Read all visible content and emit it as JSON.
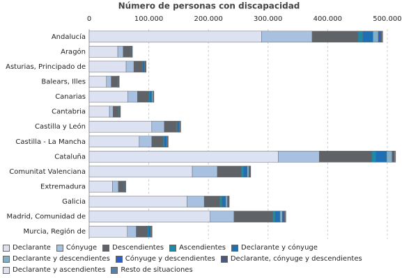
{
  "chart_data": {
    "type": "stacked-barh",
    "title": "Número de personas con discapacidad",
    "categories": [
      "Andalucía",
      "Aragón",
      "Asturias, Principado de",
      "Balears, Illes",
      "Canarias",
      "Cantabria",
      "Castilla y León",
      "Castilla - La Mancha",
      "Cataluña",
      "Comunitat Valenciana",
      "Extremadura",
      "Galicia",
      "Madrid, Comunidad de",
      "Murcia, Región de"
    ],
    "series": [
      {
        "name": "Declarante",
        "color": "#dde2f2",
        "values": [
          289000,
          48000,
          62000,
          29000,
          65000,
          34000,
          105000,
          84000,
          317000,
          173000,
          39000,
          164000,
          203000,
          64000
        ]
      },
      {
        "name": "Cónyuge",
        "color": "#a9c1e0",
        "values": [
          85000,
          9000,
          13000,
          8000,
          16000,
          6000,
          21000,
          21000,
          69000,
          42000,
          10000,
          29000,
          40000,
          15000
        ]
      },
      {
        "name": "Descendientes",
        "color": "#5f6368",
        "values": [
          77000,
          12000,
          14000,
          10000,
          19000,
          9000,
          20000,
          19000,
          88000,
          40000,
          9000,
          26000,
          65000,
          19000
        ]
      },
      {
        "name": "Ascendientes",
        "color": "#1f8aa8",
        "values": [
          8000,
          1000,
          1000,
          1000,
          2000,
          1000,
          2000,
          2000,
          7000,
          4000,
          1000,
          4000,
          4000,
          2000
        ]
      },
      {
        "name": "Declarante y cónyuge",
        "color": "#1f6fb5",
        "values": [
          17000,
          1000,
          3000,
          1000,
          3000,
          1000,
          3000,
          4000,
          18000,
          6000,
          1000,
          6000,
          8000,
          3000
        ]
      },
      {
        "name": "Declarante y descendientes",
        "color": "#7fb0c8",
        "values": [
          9000,
          500,
          1000,
          500,
          2000,
          500,
          1000,
          1000,
          9000,
          3000,
          500,
          3000,
          4000,
          1000
        ]
      },
      {
        "name": "Cónyuge y descendientes",
        "color": "#2f5fc0",
        "values": [
          3500,
          300,
          500,
          300,
          500,
          300,
          500,
          500,
          2000,
          1000,
          300,
          1000,
          2000,
          500
        ]
      },
      {
        "name": "Declarante, cónyuge y descendientes",
        "color": "#4a5a7a",
        "values": [
          2000,
          300,
          500,
          300,
          500,
          300,
          500,
          500,
          2000,
          1000,
          300,
          1000,
          2000,
          500
        ]
      },
      {
        "name": "Declarante y ascendientes",
        "color": "#dde2f2",
        "values": [
          1000,
          200,
          300,
          200,
          300,
          200,
          300,
          300,
          1000,
          500,
          200,
          500,
          1000,
          300
        ]
      },
      {
        "name": "Resto de situaciones",
        "color": "#5a7fa0",
        "values": [
          1000,
          200,
          300,
          200,
          300,
          200,
          300,
          300,
          1000,
          500,
          200,
          500,
          1000,
          300
        ]
      }
    ],
    "xlim": [
      0,
      520000
    ],
    "xticks": [
      0,
      {
        "value": 100000,
        "label": "100.000"
      },
      {
        "value": 200000,
        "label": "200.000"
      },
      {
        "value": 300000,
        "label": "300.000"
      },
      {
        "value": 400000,
        "label": "400.000"
      },
      {
        "value": 500000,
        "label": "500.000"
      }
    ],
    "grid": true
  }
}
